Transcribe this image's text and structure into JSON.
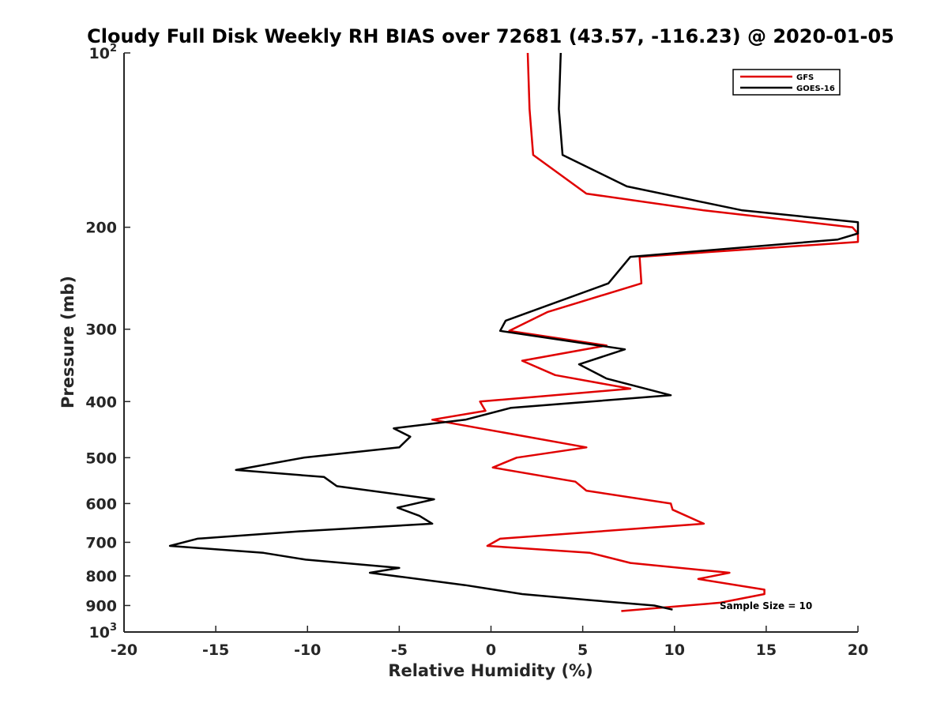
{
  "chart_data": {
    "type": "line",
    "title": "Cloudy Full Disk Weekly RH BIAS over 72681 (43.57, -116.23) @ 2020-01-05",
    "xlabel": "Relative Humidity (%)",
    "ylabel": "Pressure (mb)",
    "xlim": [
      -20,
      20
    ],
    "ylim": [
      100,
      1000
    ],
    "y_scale": "log",
    "y_reversed": true,
    "grid": false,
    "legend_position": "top-right",
    "x_ticks": [
      "-20",
      "-15",
      "-10",
      "-5",
      "0",
      "5",
      "10",
      "15",
      "20"
    ],
    "y_ticks": [
      {
        "base": "10",
        "exp": "2"
      },
      {
        "base": "200",
        "exp": ""
      },
      {
        "base": "300",
        "exp": ""
      },
      {
        "base": "400",
        "exp": ""
      },
      {
        "base": "500",
        "exp": ""
      },
      {
        "base": "600",
        "exp": ""
      },
      {
        "base": "700",
        "exp": ""
      },
      {
        "base": "800",
        "exp": ""
      },
      {
        "base": "900",
        "exp": ""
      },
      {
        "base": "10",
        "exp": "3"
      }
    ],
    "annotation": "Sample Size = 10",
    "series": [
      {
        "name": "GFS",
        "color": "#e00000",
        "points": [
          [
            2.0,
            100
          ],
          [
            2.1,
            125
          ],
          [
            2.3,
            150
          ],
          [
            5.2,
            175
          ],
          [
            11.6,
            187
          ],
          [
            19.7,
            200
          ],
          [
            20.0,
            205
          ],
          [
            20.0,
            212
          ],
          [
            8.1,
            225
          ],
          [
            8.2,
            250
          ],
          [
            3.1,
            280
          ],
          [
            1.0,
            302
          ],
          [
            6.3,
            320
          ],
          [
            1.7,
            340
          ],
          [
            3.5,
            360
          ],
          [
            7.6,
            380
          ],
          [
            -0.6,
            400
          ],
          [
            -0.3,
            415
          ],
          [
            -3.2,
            430
          ],
          [
            5.2,
            480
          ],
          [
            1.4,
            500
          ],
          [
            0.1,
            520
          ],
          [
            4.6,
            550
          ],
          [
            5.2,
            570
          ],
          [
            9.8,
            600
          ],
          [
            9.9,
            615
          ],
          [
            11.6,
            650
          ],
          [
            0.5,
            690
          ],
          [
            -0.2,
            710
          ],
          [
            5.4,
            730
          ],
          [
            7.6,
            760
          ],
          [
            13.0,
            790
          ],
          [
            11.3,
            810
          ],
          [
            14.9,
            845
          ],
          [
            14.9,
            860
          ],
          [
            12.5,
            890
          ],
          [
            7.1,
            920
          ]
        ]
      },
      {
        "name": "GOES-16",
        "color": "#000000",
        "points": [
          [
            3.8,
            100
          ],
          [
            3.7,
            125
          ],
          [
            3.9,
            150
          ],
          [
            7.4,
            170
          ],
          [
            13.7,
            187
          ],
          [
            20.0,
            196
          ],
          [
            20.0,
            205
          ],
          [
            18.9,
            210
          ],
          [
            7.6,
            225
          ],
          [
            6.4,
            250
          ],
          [
            0.8,
            290
          ],
          [
            0.5,
            302
          ],
          [
            7.3,
            325
          ],
          [
            4.8,
            345
          ],
          [
            6.3,
            365
          ],
          [
            9.8,
            390
          ],
          [
            1.1,
            410
          ],
          [
            -1.4,
            430
          ],
          [
            -5.3,
            445
          ],
          [
            -4.4,
            460
          ],
          [
            -5.0,
            480
          ],
          [
            -10.2,
            500
          ],
          [
            -13.9,
            525
          ],
          [
            -9.1,
            540
          ],
          [
            -8.4,
            560
          ],
          [
            -3.1,
            590
          ],
          [
            -5.1,
            610
          ],
          [
            -3.9,
            630
          ],
          [
            -3.2,
            650
          ],
          [
            -10.4,
            670
          ],
          [
            -16.0,
            690
          ],
          [
            -17.5,
            710
          ],
          [
            -12.4,
            730
          ],
          [
            -10.1,
            750
          ],
          [
            -5.0,
            775
          ],
          [
            -6.6,
            790
          ],
          [
            -1.4,
            830
          ],
          [
            1.7,
            860
          ],
          [
            5.2,
            880
          ],
          [
            8.9,
            900
          ],
          [
            9.9,
            915
          ]
        ]
      }
    ]
  }
}
